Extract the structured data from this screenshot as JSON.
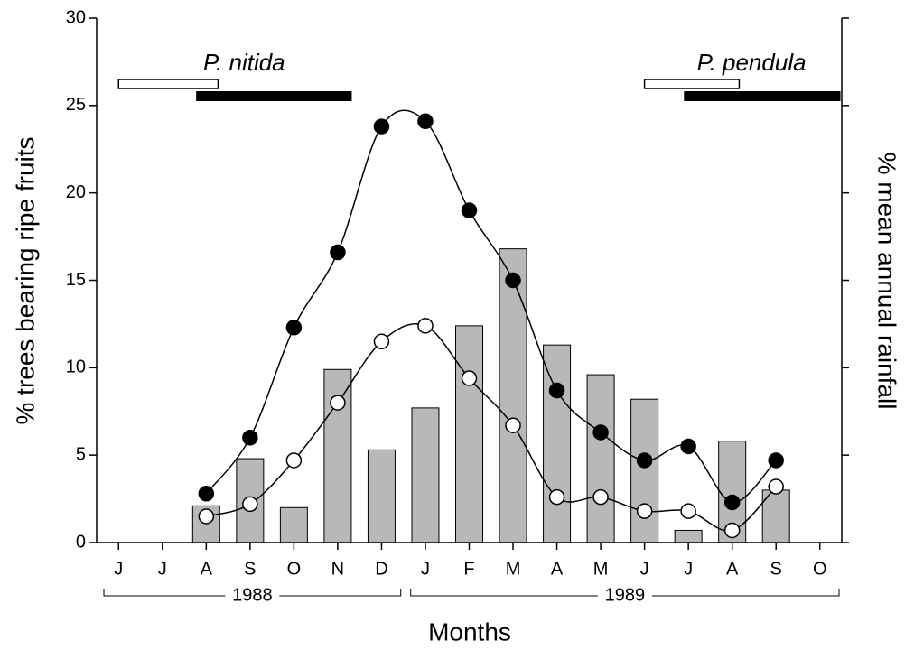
{
  "chart_data": {
    "type": "bar-line",
    "ylabel": "% trees bearing ripe fruits",
    "y2label": "% mean annual rainfall",
    "xlabel": "Months",
    "categories": [
      "J",
      "J",
      "A",
      "S",
      "O",
      "N",
      "D",
      "J",
      "F",
      "M",
      "A",
      "M",
      "J",
      "J",
      "A",
      "S",
      "O"
    ],
    "years": [
      {
        "label": "1988",
        "span": [
          0,
          6
        ]
      },
      {
        "label": "1989",
        "span": [
          7,
          16
        ]
      }
    ],
    "ylim": [
      0,
      30
    ],
    "yticks": [
      0,
      5,
      10,
      15,
      20,
      25,
      30
    ],
    "series": [
      {
        "type": "bar",
        "color": "#b8b8b8",
        "values": [
          null,
          null,
          2.1,
          4.8,
          2.0,
          9.9,
          5.3,
          7.7,
          12.4,
          16.8,
          11.3,
          9.6,
          8.2,
          0.7,
          5.8,
          3.0,
          0
        ]
      },
      {
        "type": "line",
        "color": "#000000",
        "values": [
          null,
          null,
          2.8,
          6.0,
          12.3,
          16.6,
          23.8,
          24.1,
          19.0,
          15.0,
          8.7,
          6.3,
          4.7,
          5.5,
          2.3,
          4.7,
          null
        ]
      },
      {
        "type": "line",
        "color": "#ffffff",
        "values": [
          null,
          null,
          1.5,
          2.2,
          4.7,
          8.0,
          11.5,
          12.4,
          9.4,
          6.7,
          2.6,
          2.6,
          1.8,
          1.8,
          0.7,
          3.2,
          null
        ]
      }
    ],
    "species": [
      {
        "label": "P. nitida",
        "open": [
          0.0,
          2.27
        ],
        "filled": [
          1.77,
          5.32
        ]
      },
      {
        "label": "P. pendula",
        "open": [
          12.0,
          14.16
        ],
        "filled": [
          12.9,
          16.47
        ]
      }
    ]
  }
}
